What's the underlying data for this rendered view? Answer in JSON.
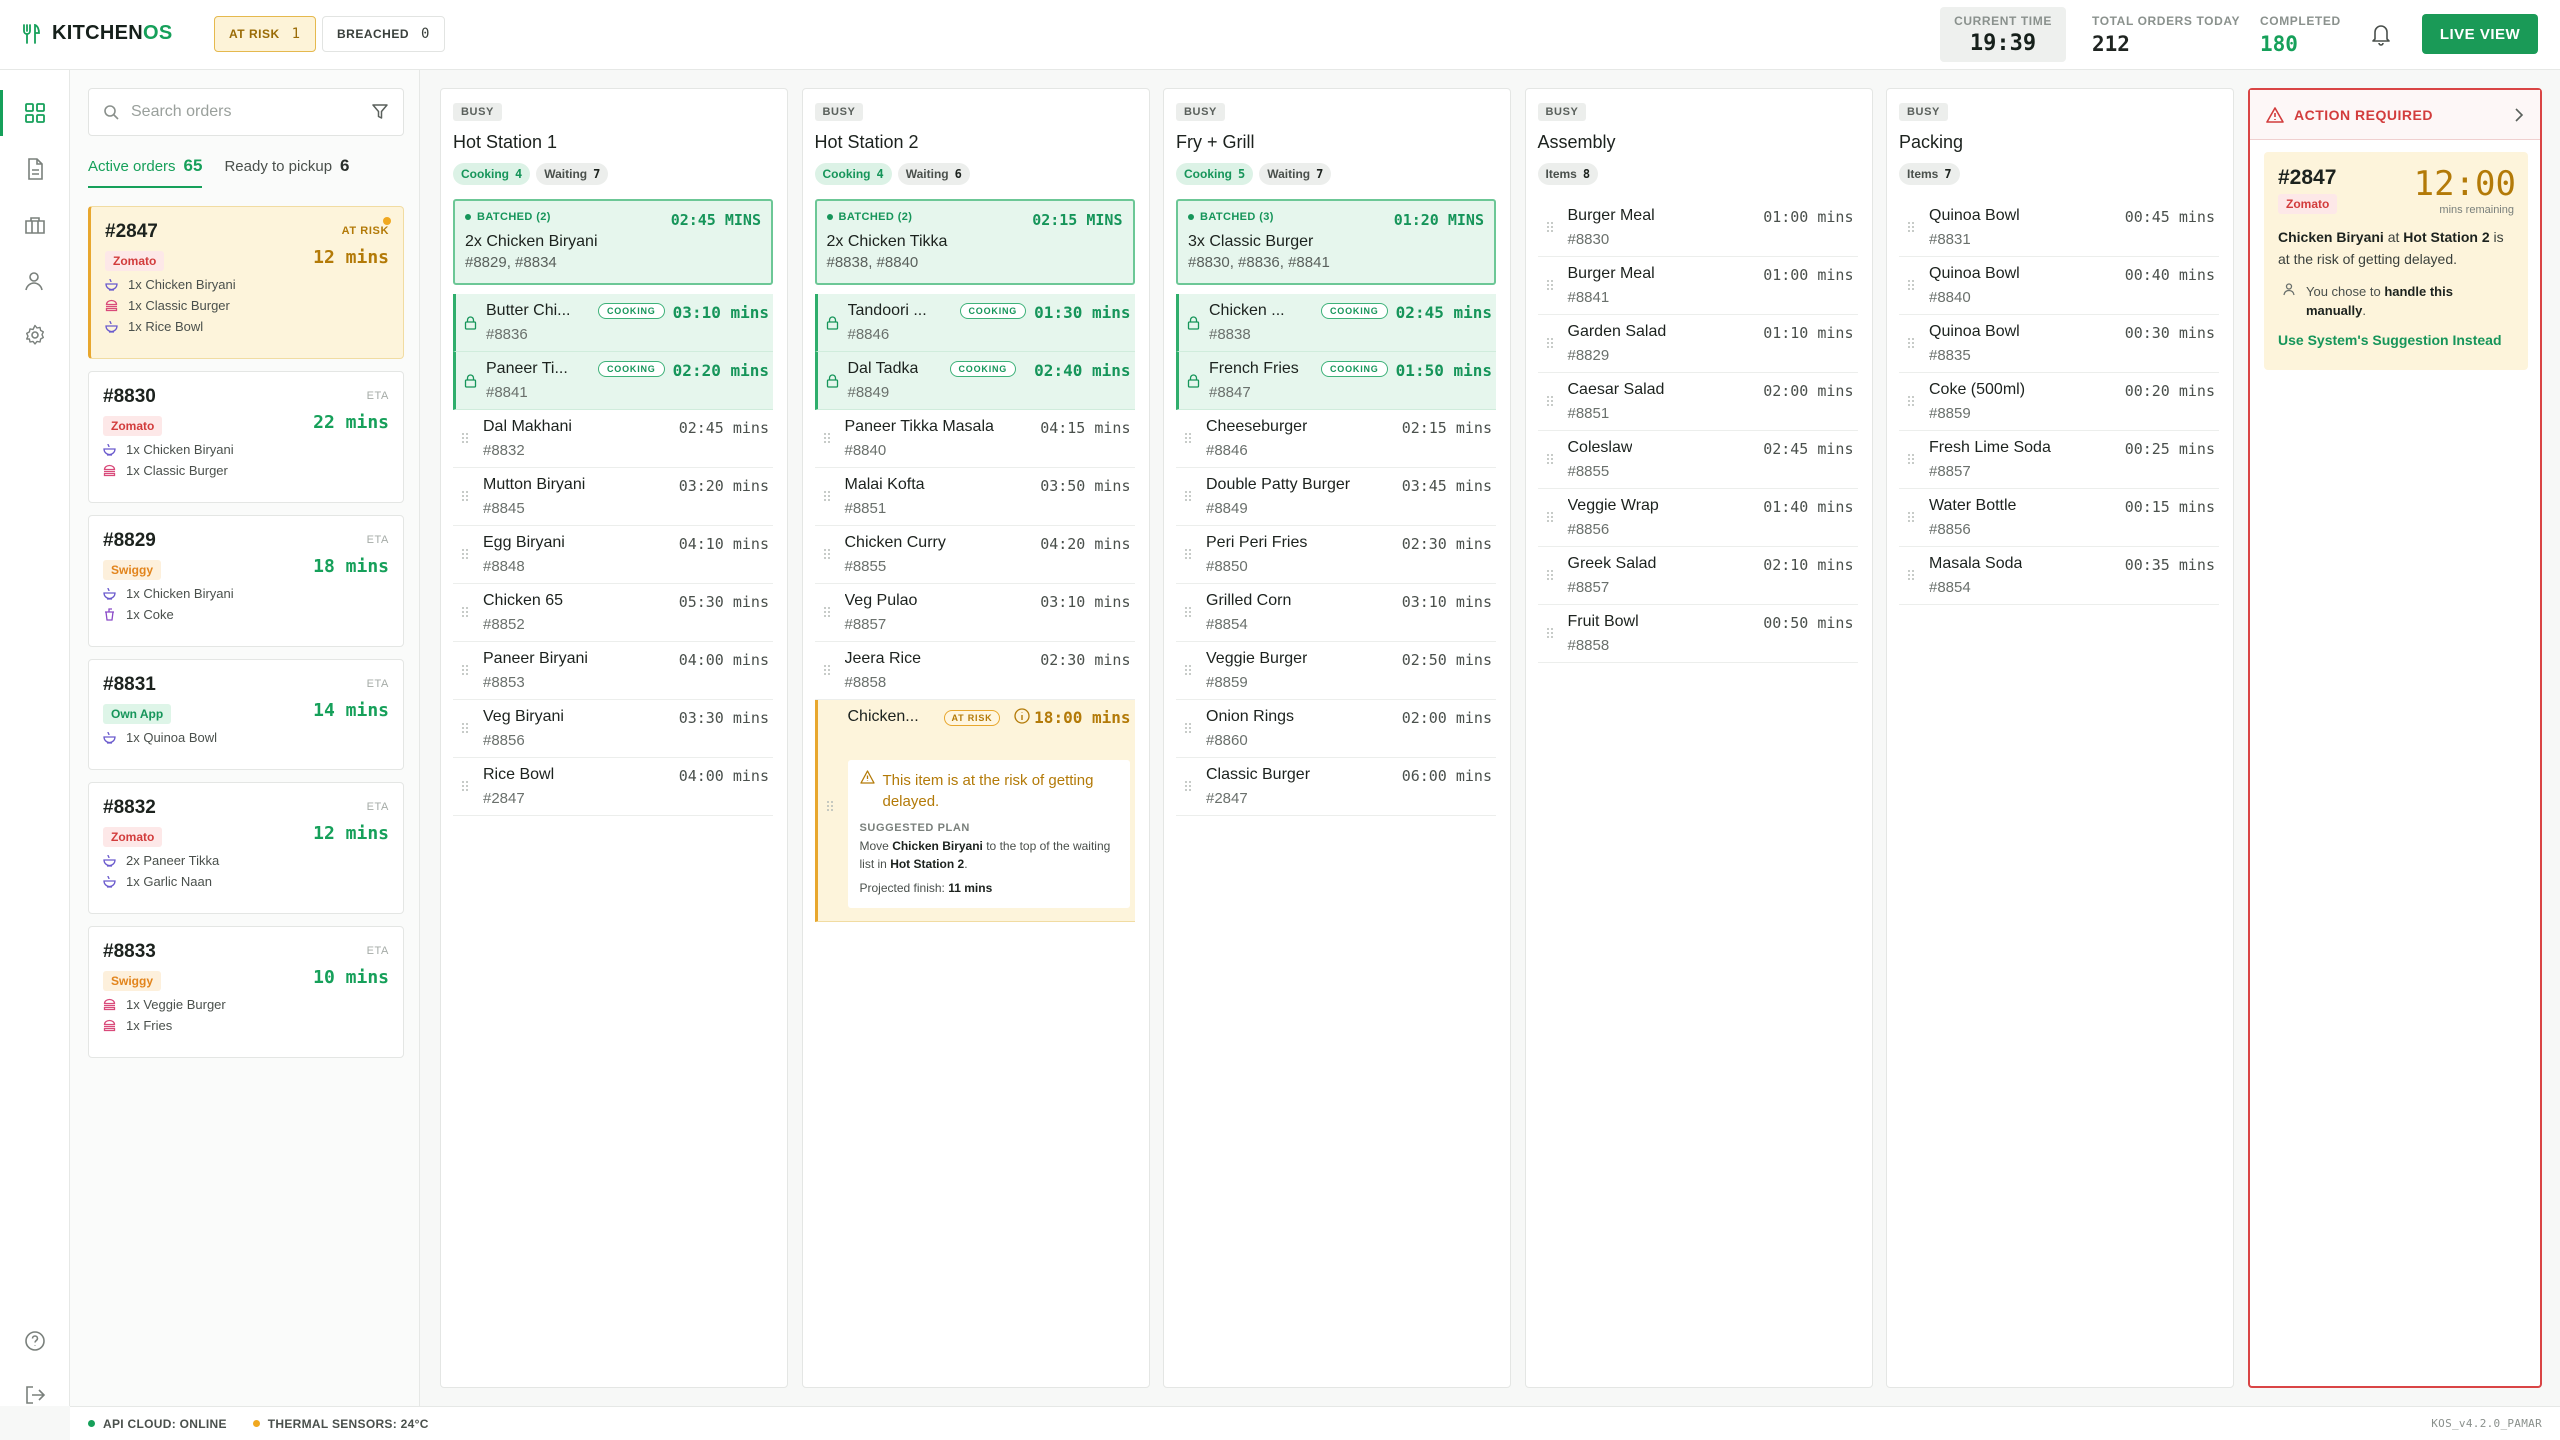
{
  "app": {
    "brand": "KITCHENOS",
    "brand_a": "KITCHEN",
    "brand_b": "OS"
  },
  "header": {
    "at_risk": {
      "label": "AT RISK",
      "count": "1"
    },
    "breached": {
      "label": "BREACHED",
      "count": "0"
    },
    "current_time": {
      "label": "CURRENT TIME",
      "value": "19:39"
    },
    "total_orders": {
      "label": "TOTAL ORDERS TODAY",
      "value": "212"
    },
    "completed": {
      "label": "COMPLETED",
      "value": "180"
    },
    "live_view": "LIVE VIEW"
  },
  "colors": {
    "accent": "#16a05a",
    "warning": "#e8a72e",
    "danger": "#d94545"
  },
  "rail": {
    "items": [
      "grid-icon",
      "document-icon",
      "briefcase-icon",
      "user-icon",
      "gear-icon"
    ],
    "bottom": [
      "help-icon",
      "logout-icon"
    ]
  },
  "orders": {
    "search_placeholder": "Search orders",
    "tabs": [
      {
        "label": "Active orders",
        "count": "65"
      },
      {
        "label": "Ready to pickup",
        "count": "6"
      }
    ],
    "list": [
      {
        "id": "#2847",
        "tag": "AT RISK",
        "platform": "Zomato",
        "eta": "12 mins",
        "items": [
          "1x Chicken Biryani",
          "1x Classic Burger",
          "1x Rice Bowl"
        ]
      },
      {
        "id": "#8830",
        "tag": "ETA",
        "platform": "Zomato",
        "eta": "22 mins",
        "items": [
          "1x Chicken Biryani",
          "1x Classic Burger"
        ]
      },
      {
        "id": "#8829",
        "tag": "ETA",
        "platform": "Swiggy",
        "eta": "18 mins",
        "items": [
          "1x Chicken Biryani",
          "1x Coke"
        ]
      },
      {
        "id": "#8831",
        "tag": "ETA",
        "platform": "Own App",
        "eta": "14 mins",
        "items": [
          "1x Quinoa Bowl"
        ]
      },
      {
        "id": "#8832",
        "tag": "ETA",
        "platform": "Zomato",
        "eta": "12 mins",
        "items": [
          "2x Paneer Tikka",
          "1x Garlic Naan"
        ]
      },
      {
        "id": "#8833",
        "tag": "ETA",
        "platform": "Swiggy",
        "eta": "10 mins",
        "items": [
          "1x Veggie Burger",
          "1x Fries"
        ]
      }
    ]
  },
  "stations": [
    {
      "status": "BUSY",
      "name": "Hot Station 1",
      "pills": [
        {
          "label": "Cooking",
          "count": "4"
        },
        {
          "label": "Waiting",
          "count": "7"
        }
      ],
      "batch": {
        "label": "BATCHED (2)",
        "time": "02:45 MINS",
        "name": "2x Chicken Biryani",
        "orders": "#8829, #8834"
      },
      "rows": [
        {
          "name": "Butter Chi...",
          "order": "#8836",
          "time": "03:10 mins",
          "badge": "COOKING"
        },
        {
          "name": "Paneer Ti...",
          "order": "#8841",
          "time": "02:20 mins",
          "badge": "COOKING"
        },
        {
          "name": "Dal Makhani",
          "order": "#8832",
          "time": "02:45 mins"
        },
        {
          "name": "Mutton Biryani",
          "order": "#8845",
          "time": "03:20 mins"
        },
        {
          "name": "Egg Biryani",
          "order": "#8848",
          "time": "04:10 mins"
        },
        {
          "name": "Chicken 65",
          "order": "#8852",
          "time": "05:30 mins"
        },
        {
          "name": "Paneer Biryani",
          "order": "#8853",
          "time": "04:00 mins"
        },
        {
          "name": "Veg Biryani",
          "order": "#8856",
          "time": "03:30 mins"
        },
        {
          "name": "Rice Bowl",
          "order": "#2847",
          "time": "04:00 mins"
        }
      ]
    },
    {
      "status": "BUSY",
      "name": "Hot Station 2",
      "pills": [
        {
          "label": "Cooking",
          "count": "4"
        },
        {
          "label": "Waiting",
          "count": "6"
        }
      ],
      "batch": {
        "label": "BATCHED (2)",
        "time": "02:15 MINS",
        "name": "2x Chicken Tikka",
        "orders": "#8838, #8840"
      },
      "rows": [
        {
          "name": "Tandoori ...",
          "order": "#8846",
          "time": "01:30 mins",
          "badge": "COOKING"
        },
        {
          "name": "Dal Tadka",
          "order": "#8849",
          "time": "02:40 mins",
          "badge": "COOKING"
        },
        {
          "name": "Paneer Tikka Masala",
          "order": "#8840",
          "time": "04:15 mins"
        },
        {
          "name": "Malai Kofta",
          "order": "#8851",
          "time": "03:50 mins"
        },
        {
          "name": "Chicken Curry",
          "order": "#8855",
          "time": "04:20 mins"
        },
        {
          "name": "Veg Pulao",
          "order": "#8857",
          "time": "03:10 mins"
        },
        {
          "name": "Jeera Rice",
          "order": "#8858",
          "time": "02:30 mins"
        }
      ],
      "risk": {
        "name": "Chicken...",
        "badge": "AT RISK",
        "time": "18:00 mins",
        "warning": "This item is at the risk of getting delayed.",
        "plan_label": "SUGGESTED PLAN",
        "plan_a": "Move ",
        "plan_item": "Chicken Biryani",
        "plan_b": " to the top of the waiting list in ",
        "plan_station": "Hot Station 2",
        "plan_c": ".",
        "finish_label": "Projected finish: ",
        "finish_value": "11 mins"
      }
    },
    {
      "status": "BUSY",
      "name": "Fry + Grill",
      "pills": [
        {
          "label": "Cooking",
          "count": "5"
        },
        {
          "label": "Waiting",
          "count": "7"
        }
      ],
      "batch": {
        "label": "BATCHED (3)",
        "time": "01:20 MINS",
        "name": "3x Classic Burger",
        "orders": "#8830, #8836, #8841"
      },
      "rows": [
        {
          "name": "Chicken ...",
          "order": "#8838",
          "time": "02:45 mins",
          "badge": "COOKING"
        },
        {
          "name": "French Fries",
          "order": "#8847",
          "time": "01:50 mins",
          "badge": "COOKING"
        },
        {
          "name": "Cheeseburger",
          "order": "#8846",
          "time": "02:15 mins"
        },
        {
          "name": "Double Patty Burger",
          "order": "#8849",
          "time": "03:45 mins"
        },
        {
          "name": "Peri Peri Fries",
          "order": "#8850",
          "time": "02:30 mins"
        },
        {
          "name": "Grilled Corn",
          "order": "#8854",
          "time": "03:10 mins"
        },
        {
          "name": "Veggie Burger",
          "order": "#8859",
          "time": "02:50 mins"
        },
        {
          "name": "Onion Rings",
          "order": "#8860",
          "time": "02:00 mins"
        },
        {
          "name": "Classic Burger",
          "order": "#2847",
          "time": "06:00 mins"
        }
      ]
    },
    {
      "status": "BUSY",
      "name": "Assembly",
      "pills": [
        {
          "label": "Items",
          "count": "8"
        }
      ],
      "rows": [
        {
          "name": "Burger Meal",
          "order": "#8830",
          "time": "01:00 mins"
        },
        {
          "name": "Burger Meal",
          "order": "#8841",
          "time": "01:00 mins"
        },
        {
          "name": "Garden Salad",
          "order": "#8829",
          "time": "01:10 mins"
        },
        {
          "name": "Caesar Salad",
          "order": "#8851",
          "time": "02:00 mins"
        },
        {
          "name": "Coleslaw",
          "order": "#8855",
          "time": "02:45 mins"
        },
        {
          "name": "Veggie Wrap",
          "order": "#8856",
          "time": "01:40 mins"
        },
        {
          "name": "Greek Salad",
          "order": "#8857",
          "time": "02:10 mins"
        },
        {
          "name": "Fruit Bowl",
          "order": "#8858",
          "time": "00:50 mins"
        }
      ]
    },
    {
      "status": "BUSY",
      "name": "Packing",
      "pills": [
        {
          "label": "Items",
          "count": "7"
        }
      ],
      "rows": [
        {
          "name": "Quinoa Bowl",
          "order": "#8831",
          "time": "00:45 mins"
        },
        {
          "name": "Quinoa Bowl",
          "order": "#8840",
          "time": "00:40 mins"
        },
        {
          "name": "Quinoa Bowl",
          "order": "#8835",
          "time": "00:30 mins"
        },
        {
          "name": "Coke (500ml)",
          "order": "#8859",
          "time": "00:20 mins"
        },
        {
          "name": "Fresh Lime Soda",
          "order": "#8857",
          "time": "00:25 mins"
        },
        {
          "name": "Water Bottle",
          "order": "#8856",
          "time": "00:15 mins"
        },
        {
          "name": "Masala Soda",
          "order": "#8854",
          "time": "00:35 mins"
        }
      ]
    }
  ],
  "action": {
    "title": "ACTION REQUIRED",
    "order": "#2847",
    "platform": "Zomato",
    "time": "12:00",
    "time_label": "mins remaining",
    "desc_item": "Chicken Biryani",
    "desc_a": " at ",
    "desc_station": "Hot Station 2",
    "desc_b": " is at the risk of getting delayed.",
    "chose_a": "You chose to ",
    "chose_b": "handle this manually",
    "chose_c": ".",
    "suggestion": "Use System's Suggestion Instead"
  },
  "footer": {
    "api": "API CLOUD: ONLINE",
    "thermal": "THERMAL SENSORS: 24°C",
    "version": "KOS_v4.2.0_PAMAR"
  }
}
